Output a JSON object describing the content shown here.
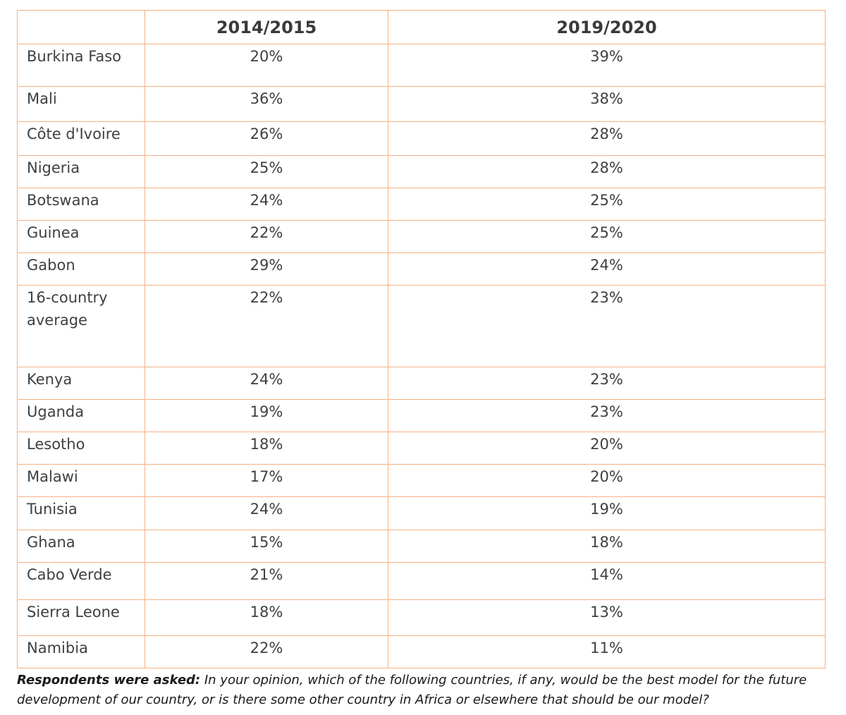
{
  "chart_data": {
    "type": "table",
    "columns": [
      "",
      "2014/2015",
      "2019/2020"
    ],
    "rows": [
      {
        "country": "Burkina Faso",
        "v2014": "20%",
        "v2019": "39%"
      },
      {
        "country": "Mali",
        "v2014": "36%",
        "v2019": "38%"
      },
      {
        "country": "Côte d'Ivoire",
        "v2014": "26%",
        "v2019": "28%"
      },
      {
        "country": "Nigeria",
        "v2014": "25%",
        "v2019": "28%"
      },
      {
        "country": "Botswana",
        "v2014": "24%",
        "v2019": "25%"
      },
      {
        "country": "Guinea",
        "v2014": "22%",
        "v2019": "25%"
      },
      {
        "country": "Gabon",
        "v2014": "29%",
        "v2019": "24%"
      },
      {
        "country": "16-country average",
        "v2014": "22%",
        "v2019": "23%"
      },
      {
        "country": "Kenya",
        "v2014": "24%",
        "v2019": "23%"
      },
      {
        "country": "Uganda",
        "v2014": "19%",
        "v2019": "23%"
      },
      {
        "country": "Lesotho",
        "v2014": "18%",
        "v2019": "20%"
      },
      {
        "country": "Malawi",
        "v2014": "17%",
        "v2019": "20%"
      },
      {
        "country": "Tunisia",
        "v2014": "24%",
        "v2019": "19%"
      },
      {
        "country": "Ghana",
        "v2014": "15%",
        "v2019": "18%"
      },
      {
        "country": "Cabo Verde",
        "v2014": "21%",
        "v2019": "14%"
      },
      {
        "country": "Sierra Leone",
        "v2014": "18%",
        "v2019": "13%"
      },
      {
        "country": "Namibia",
        "v2014": "22%",
        "v2019": "11%"
      }
    ],
    "border_color": "#f4b183"
  },
  "caption": {
    "lead": "Respondents were asked:",
    "text": " In your opinion, which of the following countries, if any, would be the best model for the future development of our country, or is there some other country in Africa or elsewhere that should be our model?"
  }
}
